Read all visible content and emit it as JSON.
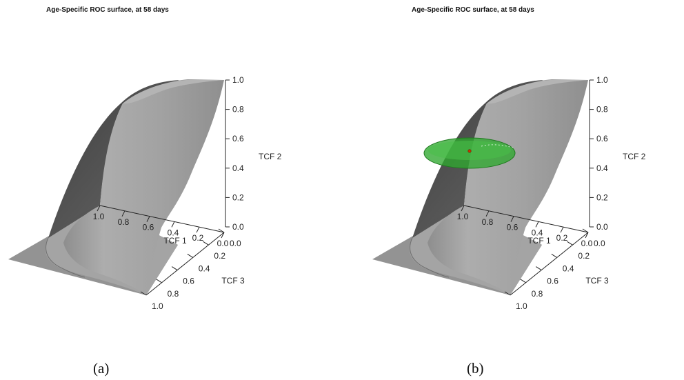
{
  "panels": [
    {
      "caption": "(a)",
      "chart_data": {
        "type": "surface3d",
        "title": "Age-Specific ROC surface, at 58 days",
        "axes": {
          "x": {
            "label": "TCF 1",
            "ticks": [
              "1.0",
              "0.8",
              "0.6",
              "0.4",
              "0.2",
              "0.0"
            ],
            "range": [
              0,
              1
            ]
          },
          "y": {
            "label": "TCF 3",
            "ticks": [
              "0.0",
              "0.2",
              "0.4",
              "0.6",
              "0.8",
              "1.0"
            ],
            "range": [
              0,
              1
            ]
          },
          "z": {
            "label": "TCF 2",
            "ticks": [
              "0.0",
              "0.2",
              "0.4",
              "0.6",
              "0.8",
              "1.0"
            ],
            "range": [
              0,
              1
            ]
          }
        },
        "surface_color": "#9c9c9c",
        "confidence_region": null
      }
    },
    {
      "caption": "(b)",
      "chart_data": {
        "type": "surface3d",
        "title": "Age-Specific ROC surface, at 58 days",
        "axes": {
          "x": {
            "label": "TCF 1",
            "ticks": [
              "1.0",
              "0.8",
              "0.6",
              "0.4",
              "0.2",
              "0.0"
            ],
            "range": [
              0,
              1
            ]
          },
          "y": {
            "label": "TCF 3",
            "ticks": [
              "0.0",
              "0.2",
              "0.4",
              "0.6",
              "0.8",
              "1.0"
            ],
            "range": [
              0,
              1
            ]
          },
          "z": {
            "label": "TCF 2",
            "ticks": [
              "0.0",
              "0.2",
              "0.4",
              "0.6",
              "0.8",
              "1.0"
            ],
            "range": [
              0,
              1
            ]
          }
        },
        "surface_color": "#9c9c9c",
        "confidence_region": {
          "shape": "ellipsoid",
          "color": "#2ea82e",
          "center_point_color": "#cc3300"
        }
      }
    }
  ]
}
